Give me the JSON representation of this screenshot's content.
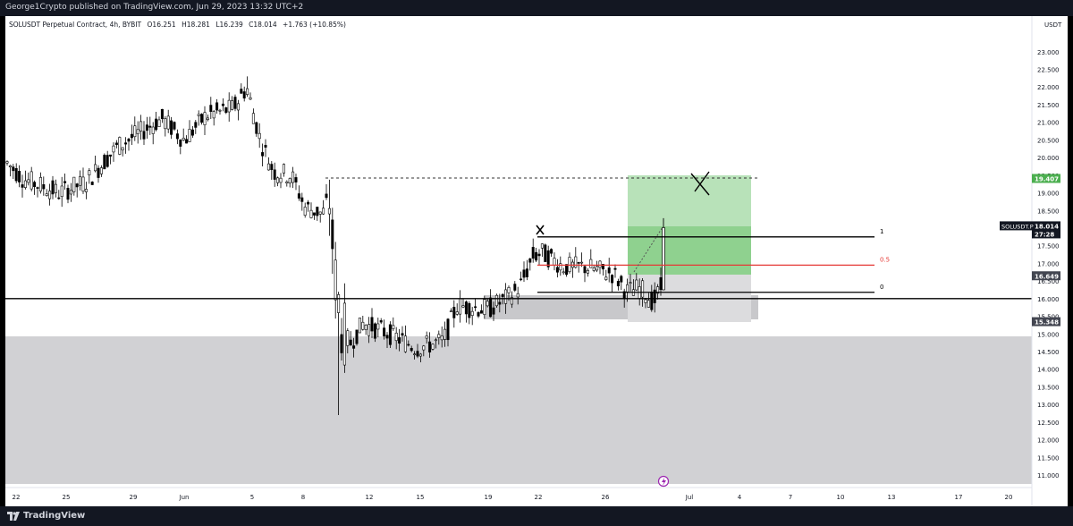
{
  "header": {
    "publisher_text": "George1Crypto published on TradingView.com, Jun 29, 2023 13:32 UTC+2"
  },
  "footer": {
    "brand": "TradingView"
  },
  "chart_data": {
    "type": "candlestick",
    "title": "SOLUSDT Perpetual Contract, 4h, BYBIT",
    "ohlc_summary": {
      "open": "O16.251",
      "high": "H18.281",
      "low": "L16.239",
      "close": "C18.014",
      "change": "+1.763 (+10.85%)"
    },
    "currency": "USDT",
    "ylim": [
      10.9,
      23.4
    ],
    "y_ticks": [
      "23.000",
      "22.500",
      "22.000",
      "21.500",
      "21.000",
      "20.500",
      "20.000",
      "19.500",
      "19.000",
      "18.500",
      "18.000",
      "17.500",
      "17.000",
      "16.500",
      "16.000",
      "15.500",
      "15.000",
      "14.500",
      "14.000",
      "13.500",
      "13.000",
      "12.500",
      "12.000",
      "11.500",
      "11.000"
    ],
    "x_tick_labels": [
      "22",
      "25",
      "29",
      "Jun",
      "5",
      "8",
      "12",
      "15",
      "19",
      "22",
      "26",
      "Jul",
      "4",
      "7",
      "10",
      "13",
      "17",
      "20"
    ],
    "price_labels": [
      {
        "text": "19.407",
        "value": 19.407,
        "color": "#4caf50"
      },
      {
        "text": "18.014",
        "value": 18.014,
        "color": "#000000"
      },
      {
        "text": "27:28",
        "value": 17.8,
        "color": "#000000"
      },
      {
        "text": "16.649",
        "value": 16.649,
        "color": "#000000"
      },
      {
        "text": "15.348",
        "value": 15.348,
        "color": "#000000"
      }
    ],
    "symbol_tag": "SOLUSDT.P",
    "fib_levels": [
      {
        "label": "1",
        "value": 17.75,
        "color": "#000000"
      },
      {
        "label": "0.5",
        "value": 16.95,
        "color": "#e53935"
      },
      {
        "label": "0",
        "value": 16.18,
        "color": "#000000"
      }
    ],
    "support_line": 16.0,
    "dashed_target": 19.42,
    "demand_zone": [
      10.95,
      14.98
    ],
    "candles_approx": [
      {
        "date": "May 21",
        "open": 20.0,
        "high": 20.3,
        "low": 19.5,
        "close": 19.7
      },
      {
        "date": "May 25",
        "open": 19.0,
        "high": 19.4,
        "low": 18.6,
        "close": 19.2
      },
      {
        "date": "May 29",
        "open": 20.6,
        "high": 21.0,
        "low": 20.1,
        "close": 20.5
      },
      {
        "date": "Jun 1",
        "open": 20.8,
        "high": 21.2,
        "low": 20.3,
        "close": 20.5
      },
      {
        "date": "Jun 4",
        "open": 21.2,
        "high": 21.7,
        "low": 20.9,
        "close": 21.4
      },
      {
        "date": "Jun 5",
        "open": 22.0,
        "high": 22.3,
        "low": 21.3,
        "close": 21.6
      },
      {
        "date": "Jun 7",
        "open": 20.2,
        "high": 20.6,
        "low": 19.4,
        "close": 19.7
      },
      {
        "date": "Jun 9",
        "open": 19.3,
        "high": 19.4,
        "low": 16.5,
        "close": 16.5
      },
      {
        "date": "Jun 10",
        "open": 16.0,
        "high": 16.2,
        "low": 12.7,
        "close": 15.2
      },
      {
        "date": "Jun 13",
        "open": 15.5,
        "high": 15.9,
        "low": 14.8,
        "close": 15.4
      },
      {
        "date": "Jun 15",
        "open": 14.9,
        "high": 15.2,
        "low": 14.0,
        "close": 14.6
      },
      {
        "date": "Jun 18",
        "open": 15.7,
        "high": 16.0,
        "low": 15.4,
        "close": 15.8
      },
      {
        "date": "Jun 21",
        "open": 16.2,
        "high": 16.8,
        "low": 16.0,
        "close": 16.6
      },
      {
        "date": "Jun 22",
        "open": 17.4,
        "high": 17.6,
        "low": 17.1,
        "close": 17.3
      },
      {
        "date": "Jun 24",
        "open": 17.0,
        "high": 17.3,
        "low": 16.8,
        "close": 17.0
      },
      {
        "date": "Jun 26",
        "open": 16.7,
        "high": 17.0,
        "low": 16.2,
        "close": 16.5
      },
      {
        "date": "Jun 28",
        "open": 16.0,
        "high": 16.3,
        "low": 15.6,
        "close": 16.2
      },
      {
        "date": "Jun 29",
        "open": 16.251,
        "high": 18.281,
        "low": 16.239,
        "close": 18.014
      }
    ]
  }
}
